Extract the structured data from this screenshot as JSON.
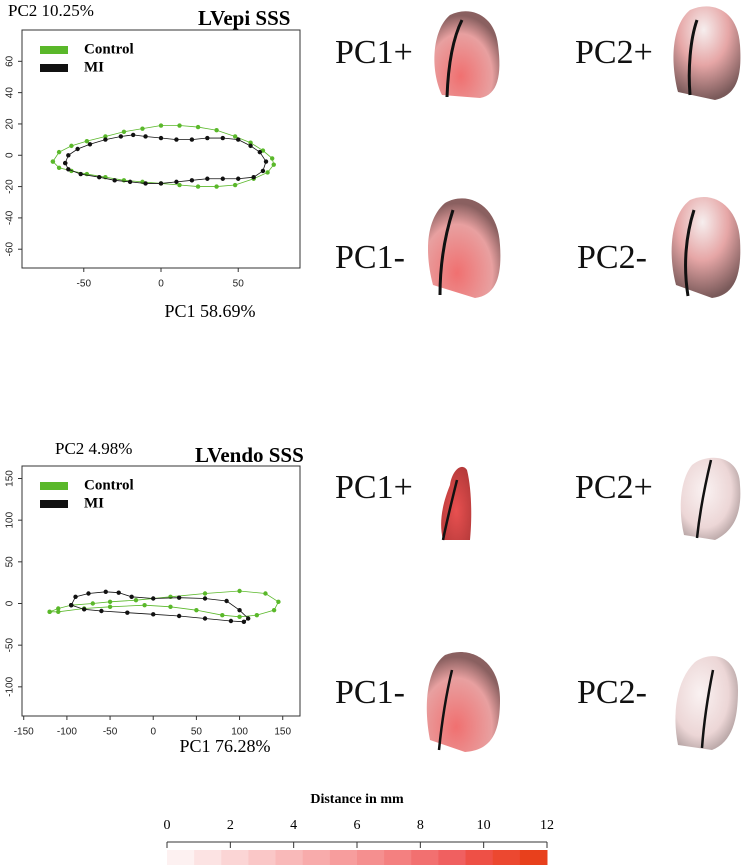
{
  "chart_data": [
    {
      "type": "line",
      "title": "LVepi SSS",
      "xlabel": "PC1 58.69%",
      "ylabel": "PC2 10.25%",
      "xlim": [
        -90,
        90
      ],
      "ylim": [
        -72,
        80
      ],
      "xticks": [
        -50,
        0,
        50
      ],
      "yticks": [
        -60,
        -40,
        -20,
        0,
        20,
        40,
        60
      ],
      "legend": "upper left",
      "shape_labels": [
        "PC1+",
        "PC2+",
        "PC1-",
        "PC2-"
      ],
      "series": [
        {
          "name": "Control",
          "color": "#5ab82a",
          "x": [
            -70,
            -66,
            -58,
            -48,
            -36,
            -24,
            -12,
            0,
            12,
            24,
            36,
            48,
            58,
            66,
            72,
            73,
            69,
            60,
            48,
            36,
            24,
            12,
            0,
            -12,
            -24,
            -36,
            -48,
            -58,
            -66,
            -70
          ],
          "values": [
            -4,
            2,
            6,
            9,
            12,
            15,
            17,
            19,
            19,
            18,
            16,
            12,
            8,
            3,
            -2,
            -6,
            -11,
            -15,
            -19,
            -20,
            -20,
            -19,
            -18,
            -17,
            -16,
            -14,
            -12,
            -10,
            -8,
            -4
          ]
        },
        {
          "name": "MI",
          "color": "#111111",
          "x": [
            -62,
            -60,
            -54,
            -46,
            -36,
            -26,
            -18,
            -10,
            0,
            10,
            20,
            30,
            40,
            50,
            58,
            64,
            68,
            66,
            60,
            50,
            40,
            30,
            20,
            10,
            0,
            -10,
            -20,
            -30,
            -40,
            -52,
            -60,
            -62
          ],
          "values": [
            -5,
            0,
            4,
            7,
            10,
            12,
            13,
            12,
            11,
            10,
            10,
            11,
            11,
            10,
            6,
            2,
            -4,
            -10,
            -14,
            -15,
            -15,
            -15,
            -16,
            -17,
            -18,
            -18,
            -17,
            -16,
            -14,
            -12,
            -9,
            -5
          ]
        }
      ]
    },
    {
      "type": "line",
      "title": "LVendo SSS",
      "xlabel": "PC1 76.28%",
      "ylabel": "PC2 4.98%",
      "xlim": [
        -152,
        170
      ],
      "ylim": [
        -135,
        165
      ],
      "xticks": [
        -150,
        -100,
        -50,
        0,
        50,
        100,
        150
      ],
      "yticks": [
        -100,
        -50,
        0,
        50,
        100,
        150
      ],
      "legend": "upper left",
      "shape_labels": [
        "PC1+",
        "PC2+",
        "PC1-",
        "PC2-"
      ],
      "series": [
        {
          "name": "Control",
          "color": "#5ab82a",
          "x": [
            -120,
            -110,
            -95,
            -70,
            -50,
            -20,
            20,
            60,
            100,
            130,
            145,
            140,
            120,
            100,
            80,
            50,
            20,
            -10,
            -50,
            -80,
            -110,
            -120
          ],
          "values": [
            -10,
            -6,
            -2,
            0,
            2,
            4,
            8,
            12,
            15,
            12,
            2,
            -8,
            -14,
            -16,
            -14,
            -8,
            -4,
            -2,
            -4,
            -6,
            -10,
            -10
          ]
        },
        {
          "name": "MI",
          "color": "#111111",
          "x": [
            -95,
            -90,
            -75,
            -55,
            -40,
            -25,
            0,
            30,
            60,
            85,
            100,
            110,
            105,
            90,
            60,
            30,
            0,
            -30,
            -60,
            -80,
            -95
          ],
          "values": [
            -2,
            8,
            12,
            14,
            13,
            8,
            6,
            7,
            6,
            3,
            -8,
            -18,
            -22,
            -21,
            -18,
            -15,
            -13,
            -11,
            -9,
            -7,
            -2
          ]
        }
      ]
    },
    {
      "type": "colorbar",
      "title": "Distance in mm",
      "xlim": [
        0,
        12
      ],
      "xticks": [
        0,
        2,
        4,
        6,
        8,
        10,
        12
      ],
      "colors": [
        "#fdf1f1",
        "#fce3e3",
        "#fbd5d5",
        "#fac7c7",
        "#f9b9b9",
        "#f8abab",
        "#f79d9d",
        "#f58f8f",
        "#f48080",
        "#f27070",
        "#f06060",
        "#ee5046",
        "#ec4830",
        "#e8401c"
      ]
    }
  ]
}
